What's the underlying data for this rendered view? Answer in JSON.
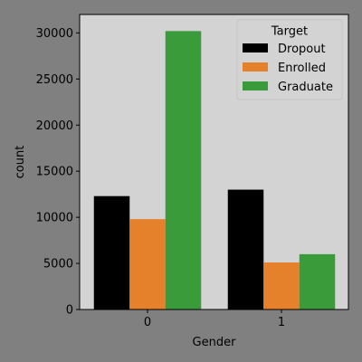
{
  "chart_data": {
    "type": "bar",
    "xlabel": "Gender",
    "ylabel": "count",
    "categories": [
      "0",
      "1"
    ],
    "ylim": [
      0,
      32000
    ],
    "yticks": [
      0,
      5000,
      10000,
      15000,
      20000,
      25000,
      30000
    ],
    "yticklabels": [
      "0",
      "5000",
      "10000",
      "15000",
      "20000",
      "25000",
      "30000"
    ],
    "grid": false,
    "legend": {
      "title": "Target",
      "placement": "top-right"
    },
    "series": [
      {
        "name": "Dropout",
        "color": "#000000",
        "values": [
          12300,
          13000
        ]
      },
      {
        "name": "Enrolled",
        "color": "#e6812b",
        "values": [
          9800,
          5100
        ]
      },
      {
        "name": "Graduate",
        "color": "#3a9b3a",
        "values": [
          30200,
          6000
        ]
      }
    ],
    "plot_background": "#d3d3d3",
    "figure_background": "#808080"
  }
}
